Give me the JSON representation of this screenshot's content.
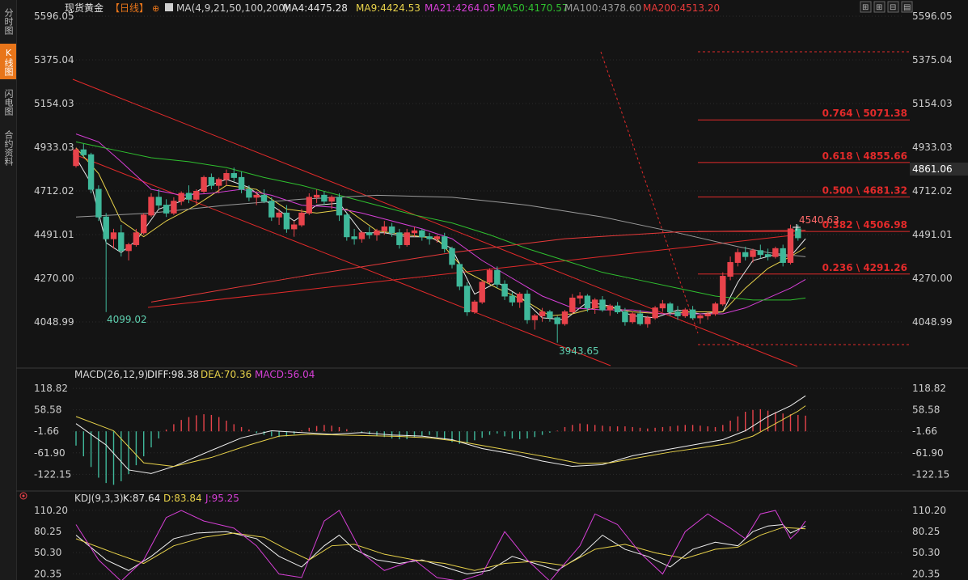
{
  "sidebar": {
    "items": [
      {
        "label": "分时图",
        "active": false
      },
      {
        "label": "K线图",
        "active": true
      },
      {
        "label": "闪电图",
        "active": false
      },
      {
        "label": "合约资料",
        "active": false
      }
    ]
  },
  "header": {
    "instrument": "现货黄金",
    "period": "【日线】",
    "ma_label": "MA(4,9,21,50,100,200)",
    "ma": [
      {
        "text": "MA4:4475.28",
        "color": "#e8e8e8"
      },
      {
        "text": "MA9:4424.53",
        "color": "#e8d24a"
      },
      {
        "text": "MA21:4264.05",
        "color": "#d63fd6"
      },
      {
        "text": "MA50:4170.57",
        "color": "#2fc02f"
      },
      {
        "text": "MA100:4378.60",
        "color": "#9a9a9a"
      },
      {
        "text": "MA200:4513.20",
        "color": "#e83a3a"
      }
    ]
  },
  "toolbar": {
    "buttons": [
      "fit-icon",
      "zoom-in-icon",
      "zoom-out-icon",
      "more-icon"
    ]
  },
  "colors": {
    "up": "#e8434b",
    "down": "#3fb89a",
    "grid": "#2b2b2b",
    "fib": "#e22a2a",
    "price_tag_bg": "#2d2d2d"
  },
  "main_axis": {
    "ticks": [
      "5596.05",
      "5375.04",
      "5154.03",
      "4933.03",
      "4712.02",
      "4491.01",
      "4270.00",
      "4048.99"
    ],
    "ylim": [
      3900,
      5640
    ]
  },
  "price_tag": "4861.06",
  "annotations": {
    "low_left": "4099.02",
    "low_bottom": "3943.65",
    "last_high": "4540.63"
  },
  "fib_levels": [
    {
      "label": "0.764 \\ 5071.38",
      "value": 5071.38
    },
    {
      "label": "0.618 \\ 4855.66",
      "value": 4855.66
    },
    {
      "label": "0.500 \\ 4681.32",
      "value": 4681.32
    },
    {
      "label": "0.382 \\ 4506.98",
      "value": 4506.98
    },
    {
      "label": "0.236 \\ 4291.26",
      "value": 4291.26
    }
  ],
  "fib_extremes": {
    "top": 5420,
    "bottom": 3996
  },
  "macd": {
    "title": "MACD(26,12,9)",
    "diff": "DIFF:98.38",
    "dea": "DEA:70.36",
    "macd": "MACD:56.04",
    "ticks": [
      "118.82",
      "58.58",
      "-1.66",
      "-61.90",
      "-122.15"
    ],
    "ylim": [
      -160,
      135
    ]
  },
  "kdj": {
    "title": "KDJ(9,3,3)",
    "k": "K:87.64",
    "d": "D:83.84",
    "j": "J:95.25",
    "ticks": [
      "110.20",
      "80.25",
      "50.30",
      "20.35"
    ],
    "ylim": [
      15,
      118
    ]
  },
  "chart_data": {
    "type": "candlestick",
    "ohlc": [
      [
        4840,
        4930,
        4830,
        4920
      ],
      [
        4920,
        4950,
        4880,
        4895
      ],
      [
        4895,
        4905,
        4700,
        4720
      ],
      [
        4720,
        4740,
        4560,
        4580
      ],
      [
        4580,
        4600,
        4099,
        4470
      ],
      [
        4470,
        4520,
        4420,
        4500
      ],
      [
        4500,
        4540,
        4380,
        4410
      ],
      [
        4410,
        4450,
        4360,
        4440
      ],
      [
        4440,
        4520,
        4430,
        4500
      ],
      [
        4500,
        4600,
        4490,
        4590
      ],
      [
        4590,
        4700,
        4580,
        4680
      ],
      [
        4680,
        4720,
        4620,
        4640
      ],
      [
        4640,
        4670,
        4580,
        4600
      ],
      [
        4600,
        4680,
        4590,
        4660
      ],
      [
        4660,
        4710,
        4640,
        4700
      ],
      [
        4700,
        4740,
        4650,
        4670
      ],
      [
        4670,
        4720,
        4640,
        4710
      ],
      [
        4710,
        4790,
        4700,
        4780
      ],
      [
        4780,
        4800,
        4720,
        4740
      ],
      [
        4740,
        4780,
        4700,
        4770
      ],
      [
        4770,
        4820,
        4740,
        4800
      ],
      [
        4800,
        4830,
        4760,
        4780
      ],
      [
        4780,
        4810,
        4700,
        4720
      ],
      [
        4720,
        4740,
        4660,
        4680
      ],
      [
        4680,
        4710,
        4640,
        4690
      ],
      [
        4690,
        4720,
        4650,
        4660
      ],
      [
        4660,
        4680,
        4560,
        4580
      ],
      [
        4580,
        4620,
        4540,
        4600
      ],
      [
        4600,
        4640,
        4500,
        4520
      ],
      [
        4520,
        4560,
        4480,
        4540
      ],
      [
        4540,
        4620,
        4530,
        4600
      ],
      [
        4600,
        4700,
        4590,
        4680
      ],
      [
        4680,
        4720,
        4650,
        4690
      ],
      [
        4690,
        4710,
        4640,
        4660
      ],
      [
        4660,
        4690,
        4620,
        4680
      ],
      [
        4680,
        4700,
        4560,
        4590
      ],
      [
        4590,
        4600,
        4460,
        4480
      ],
      [
        4480,
        4520,
        4440,
        4470
      ],
      [
        4470,
        4510,
        4450,
        4500
      ],
      [
        4500,
        4530,
        4470,
        4490
      ],
      [
        4490,
        4520,
        4460,
        4510
      ],
      [
        4510,
        4560,
        4490,
        4530
      ],
      [
        4530,
        4550,
        4480,
        4500
      ],
      [
        4500,
        4520,
        4420,
        4440
      ],
      [
        4440,
        4520,
        4430,
        4500
      ],
      [
        4500,
        4530,
        4480,
        4510
      ],
      [
        4510,
        4520,
        4460,
        4480
      ],
      [
        4480,
        4500,
        4440,
        4470
      ],
      [
        4470,
        4490,
        4450,
        4480
      ],
      [
        4480,
        4500,
        4400,
        4420
      ],
      [
        4420,
        4430,
        4320,
        4340
      ],
      [
        4340,
        4350,
        4210,
        4230
      ],
      [
        4230,
        4250,
        4080,
        4100
      ],
      [
        4100,
        4160,
        4090,
        4150
      ],
      [
        4150,
        4260,
        4140,
        4250
      ],
      [
        4250,
        4320,
        4240,
        4310
      ],
      [
        4310,
        4330,
        4220,
        4240
      ],
      [
        4240,
        4260,
        4160,
        4180
      ],
      [
        4180,
        4200,
        4130,
        4150
      ],
      [
        4150,
        4200,
        4120,
        4190
      ],
      [
        4190,
        4210,
        4040,
        4060
      ],
      [
        4060,
        4090,
        4010,
        4080
      ],
      [
        4080,
        4120,
        4050,
        4100
      ],
      [
        4100,
        4110,
        4050,
        4070
      ],
      [
        4070,
        4080,
        3944,
        4040
      ],
      [
        4040,
        4110,
        4030,
        4100
      ],
      [
        4100,
        4190,
        4090,
        4170
      ],
      [
        4170,
        4200,
        4140,
        4180
      ],
      [
        4180,
        4190,
        4100,
        4120
      ],
      [
        4120,
        4170,
        4090,
        4160
      ],
      [
        4160,
        4180,
        4100,
        4110
      ],
      [
        4110,
        4140,
        4080,
        4130
      ],
      [
        4130,
        4150,
        4090,
        4100
      ],
      [
        4100,
        4120,
        4030,
        4050
      ],
      [
        4050,
        4100,
        4040,
        4090
      ],
      [
        4090,
        4110,
        4030,
        4040
      ],
      [
        4040,
        4080,
        4020,
        4070
      ],
      [
        4070,
        4130,
        4060,
        4120
      ],
      [
        4120,
        4160,
        4100,
        4140
      ],
      [
        4140,
        4150,
        4080,
        4100
      ],
      [
        4100,
        4130,
        4060,
        4080
      ],
      [
        4080,
        4120,
        4070,
        4110
      ],
      [
        4110,
        4130,
        4060,
        4070
      ],
      [
        4070,
        4090,
        4040,
        4080
      ],
      [
        4080,
        4100,
        4060,
        4090
      ],
      [
        4090,
        4150,
        4080,
        4140
      ],
      [
        4140,
        4300,
        4130,
        4280
      ],
      [
        4280,
        4380,
        4260,
        4350
      ],
      [
        4350,
        4420,
        4330,
        4400
      ],
      [
        4400,
        4430,
        4360,
        4380
      ],
      [
        4380,
        4420,
        4350,
        4410
      ],
      [
        4410,
        4440,
        4370,
        4390
      ],
      [
        4390,
        4420,
        4360,
        4380
      ],
      [
        4380,
        4430,
        4370,
        4420
      ],
      [
        4420,
        4440,
        4330,
        4350
      ],
      [
        4350,
        4541,
        4340,
        4520
      ],
      [
        4520,
        4541,
        4460,
        4475
      ]
    ],
    "ma_series": [
      {
        "name": "MA4",
        "color": "#e8e8e8",
        "points": [
          [
            0,
            4880
          ],
          [
            2,
            4750
          ],
          [
            4,
            4450
          ],
          [
            6,
            4400
          ],
          [
            8,
            4460
          ],
          [
            11,
            4620
          ],
          [
            14,
            4660
          ],
          [
            17,
            4730
          ],
          [
            20,
            4770
          ],
          [
            23,
            4730
          ],
          [
            26,
            4640
          ],
          [
            29,
            4560
          ],
          [
            32,
            4640
          ],
          [
            35,
            4650
          ],
          [
            38,
            4500
          ],
          [
            41,
            4500
          ],
          [
            44,
            4480
          ],
          [
            47,
            4480
          ],
          [
            50,
            4420
          ],
          [
            53,
            4190
          ],
          [
            56,
            4250
          ],
          [
            59,
            4180
          ],
          [
            62,
            4070
          ],
          [
            65,
            4060
          ],
          [
            68,
            4150
          ],
          [
            71,
            4130
          ],
          [
            74,
            4080
          ],
          [
            77,
            4070
          ],
          [
            80,
            4110
          ],
          [
            83,
            4090
          ],
          [
            86,
            4100
          ],
          [
            88,
            4250
          ],
          [
            90,
            4360
          ],
          [
            93,
            4390
          ],
          [
            95,
            4380
          ],
          [
            97,
            4470
          ]
        ]
      },
      {
        "name": "MA9",
        "color": "#e8d24a",
        "points": [
          [
            0,
            4930
          ],
          [
            3,
            4800
          ],
          [
            6,
            4560
          ],
          [
            9,
            4480
          ],
          [
            12,
            4560
          ],
          [
            16,
            4640
          ],
          [
            20,
            4740
          ],
          [
            24,
            4720
          ],
          [
            28,
            4620
          ],
          [
            32,
            4600
          ],
          [
            36,
            4620
          ],
          [
            40,
            4510
          ],
          [
            44,
            4490
          ],
          [
            48,
            4470
          ],
          [
            52,
            4300
          ],
          [
            56,
            4220
          ],
          [
            60,
            4150
          ],
          [
            63,
            4080
          ],
          [
            66,
            4090
          ],
          [
            70,
            4130
          ],
          [
            74,
            4100
          ],
          [
            78,
            4090
          ],
          [
            82,
            4100
          ],
          [
            86,
            4100
          ],
          [
            89,
            4220
          ],
          [
            92,
            4320
          ],
          [
            95,
            4380
          ],
          [
            97,
            4425
          ]
        ]
      },
      {
        "name": "MA21",
        "color": "#d63fd6",
        "points": [
          [
            0,
            5000
          ],
          [
            3,
            4960
          ],
          [
            6,
            4860
          ],
          [
            10,
            4720
          ],
          [
            14,
            4690
          ],
          [
            18,
            4700
          ],
          [
            22,
            4720
          ],
          [
            26,
            4690
          ],
          [
            30,
            4640
          ],
          [
            34,
            4630
          ],
          [
            38,
            4600
          ],
          [
            42,
            4560
          ],
          [
            46,
            4520
          ],
          [
            50,
            4470
          ],
          [
            54,
            4360
          ],
          [
            58,
            4270
          ],
          [
            62,
            4180
          ],
          [
            66,
            4120
          ],
          [
            70,
            4110
          ],
          [
            74,
            4110
          ],
          [
            78,
            4090
          ],
          [
            82,
            4090
          ],
          [
            86,
            4090
          ],
          [
            89,
            4120
          ],
          [
            92,
            4170
          ],
          [
            95,
            4220
          ],
          [
            97,
            4264
          ]
        ]
      },
      {
        "name": "MA50",
        "color": "#2fc02f",
        "points": [
          [
            0,
            4960
          ],
          [
            5,
            4920
          ],
          [
            10,
            4880
          ],
          [
            15,
            4860
          ],
          [
            20,
            4830
          ],
          [
            25,
            4780
          ],
          [
            30,
            4740
          ],
          [
            35,
            4690
          ],
          [
            40,
            4640
          ],
          [
            45,
            4590
          ],
          [
            50,
            4550
          ],
          [
            55,
            4490
          ],
          [
            60,
            4420
          ],
          [
            65,
            4360
          ],
          [
            70,
            4300
          ],
          [
            75,
            4260
          ],
          [
            80,
            4220
          ],
          [
            85,
            4180
          ],
          [
            90,
            4160
          ],
          [
            95,
            4160
          ],
          [
            97,
            4170
          ]
        ]
      },
      {
        "name": "MA100",
        "color": "#9a9a9a",
        "points": [
          [
            0,
            4580
          ],
          [
            10,
            4600
          ],
          [
            20,
            4640
          ],
          [
            30,
            4670
          ],
          [
            40,
            4690
          ],
          [
            50,
            4680
          ],
          [
            60,
            4640
          ],
          [
            70,
            4580
          ],
          [
            80,
            4500
          ],
          [
            88,
            4430
          ],
          [
            92,
            4400
          ],
          [
            97,
            4379
          ]
        ]
      },
      {
        "name": "MA200",
        "color": "#e83a3a",
        "points": [
          [
            10,
            4150
          ],
          [
            30,
            4280
          ],
          [
            50,
            4400
          ],
          [
            65,
            4470
          ],
          [
            80,
            4505
          ],
          [
            97,
            4513
          ]
        ]
      }
    ]
  }
}
